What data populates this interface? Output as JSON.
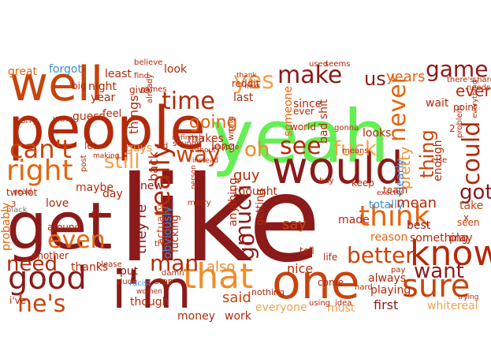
{
  "palette": {
    "dark_red": "#8b1a1a",
    "red": "#b22a0a",
    "burnt": "#c8440c",
    "orange": "#e5650f",
    "light_orange": "#f08c2c",
    "peach": "#f5a04a",
    "green": "#66ee55",
    "blue": "#3c8fd8",
    "gray": "#777777"
  },
  "words": [
    {
      "text": "like",
      "color": "dark_red"
    },
    {
      "text": "yeah",
      "color": "green"
    },
    {
      "text": "people",
      "color": "red"
    },
    {
      "text": "get",
      "color": "dark_red"
    },
    {
      "text": "would",
      "color": "dark_red"
    },
    {
      "text": "well",
      "color": "burnt"
    },
    {
      "text": "one",
      "color": "burnt"
    },
    {
      "text": "i'm",
      "color": "dark_red"
    },
    {
      "text": "good",
      "color": "dark_red"
    },
    {
      "text": "that",
      "color": "light_orange"
    },
    {
      "text": "know",
      "color": "red"
    },
    {
      "text": "think",
      "color": "orange"
    },
    {
      "text": "sure",
      "color": "burnt"
    },
    {
      "text": "right",
      "color": "orange"
    },
    {
      "text": "can't",
      "color": "burnt"
    },
    {
      "text": "time",
      "color": "red"
    },
    {
      "text": "make",
      "color": "dark_red"
    },
    {
      "text": "really",
      "color": "red"
    },
    {
      "text": "yes",
      "color": "peach"
    },
    {
      "text": "see",
      "color": "red"
    },
    {
      "text": "fuck",
      "color": "peach"
    },
    {
      "text": "never",
      "color": "orange"
    },
    {
      "text": "could",
      "color": "red"
    },
    {
      "text": "game",
      "color": "dark_red"
    },
    {
      "text": "even",
      "color": "orange"
    },
    {
      "text": "much",
      "color": "dark_red"
    },
    {
      "text": "go",
      "color": "dark_red"
    },
    {
      "text": "got",
      "color": "dark_red"
    },
    {
      "text": "want",
      "color": "dark_red"
    },
    {
      "text": "he's",
      "color": "burnt"
    },
    {
      "text": "man",
      "color": "red"
    },
    {
      "text": "better",
      "color": "burnt"
    },
    {
      "text": "thing",
      "color": "burnt"
    },
    {
      "text": "way",
      "color": "burnt"
    },
    {
      "text": "still",
      "color": "peach"
    },
    {
      "text": "need",
      "color": "red"
    },
    {
      "text": "oh",
      "color": "light_orange"
    },
    {
      "text": "us",
      "color": "dark_red"
    },
    {
      "text": "say",
      "color": "burnt"
    },
    {
      "text": "going",
      "color": "orange"
    },
    {
      "text": "every",
      "color": "red"
    },
    {
      "text": "pretty",
      "color": "light_orange"
    },
    {
      "text": "years",
      "color": "orange"
    },
    {
      "text": "said",
      "color": "burnt"
    },
    {
      "text": "guy",
      "color": "red"
    },
    {
      "text": "also",
      "color": "light_orange"
    },
    {
      "text": "nice",
      "color": "red"
    },
    {
      "text": "they're",
      "color": "dark_red"
    },
    {
      "text": "obviously",
      "color": "blue"
    },
    {
      "text": "clearly",
      "color": "blue"
    },
    {
      "text": "totally",
      "color": "blue"
    },
    {
      "text": "forgot",
      "color": "blue"
    },
    {
      "text": "mean",
      "color": "red"
    },
    {
      "text": "best",
      "color": "dark_red"
    },
    {
      "text": "made",
      "color": "red"
    },
    {
      "text": "take",
      "color": "burnt"
    },
    {
      "text": "seen",
      "color": "burnt"
    },
    {
      "text": "reason",
      "color": "orange"
    },
    {
      "text": "play",
      "color": "red"
    },
    {
      "text": "something",
      "color": "red"
    },
    {
      "text": "always",
      "color": "red"
    },
    {
      "text": "first",
      "color": "dark_red"
    },
    {
      "text": "everyone",
      "color": "peach"
    },
    {
      "text": "white",
      "color": "peach"
    },
    {
      "text": "real",
      "color": "peach"
    },
    {
      "text": "must",
      "color": "peach"
    },
    {
      "text": "money",
      "color": "red"
    },
    {
      "text": "work",
      "color": "red"
    },
    {
      "text": "though",
      "color": "red"
    },
    {
      "text": "put",
      "color": "dark_red"
    },
    {
      "text": "thanks",
      "color": "red"
    },
    {
      "text": "love",
      "color": "red"
    },
    {
      "text": "maybe",
      "color": "red"
    },
    {
      "text": "day",
      "color": "red"
    },
    {
      "text": "new",
      "color": "dark_red"
    },
    {
      "text": "back",
      "color": "red"
    },
    {
      "text": "guys",
      "color": "light_orange"
    },
    {
      "text": "actually",
      "color": "burnt"
    },
    {
      "text": "fucking",
      "color": "red"
    },
    {
      "text": "probably",
      "color": "orange"
    },
    {
      "text": "around",
      "color": "red"
    },
    {
      "text": "another",
      "color": "red"
    },
    {
      "text": "great",
      "color": "orange"
    },
    {
      "text": "night",
      "color": "red"
    },
    {
      "text": "year",
      "color": "red"
    },
    {
      "text": "least",
      "color": "red"
    },
    {
      "text": "guess",
      "color": "red"
    },
    {
      "text": "look",
      "color": "red"
    },
    {
      "text": "feel",
      "color": "red"
    },
    {
      "text": "big",
      "color": "red"
    },
    {
      "text": "give",
      "color": "red"
    },
    {
      "text": "things",
      "color": "red"
    },
    {
      "text": "makes",
      "color": "red"
    },
    {
      "text": "long",
      "color": "red"
    },
    {
      "text": "thought",
      "color": "red"
    },
    {
      "text": "someone",
      "color": "orange"
    },
    {
      "text": "anything",
      "color": "red"
    },
    {
      "text": "getting",
      "color": "red"
    },
    {
      "text": "bad shit",
      "color": "red"
    },
    {
      "text": "looks",
      "color": "red"
    },
    {
      "text": "since",
      "color": "red"
    },
    {
      "text": "ever",
      "color": "red"
    },
    {
      "text": "world",
      "color": "red"
    },
    {
      "text": "last",
      "color": "red"
    },
    {
      "text": "reddit",
      "color": "red"
    },
    {
      "text": "enough",
      "color": "red"
    },
    {
      "text": "wait",
      "color": "red"
    },
    {
      "text": "point",
      "color": "red"
    },
    {
      "text": "let",
      "color": "red"
    },
    {
      "text": "i've",
      "color": "red"
    },
    {
      "text": "tell",
      "color": "red"
    },
    {
      "text": "life",
      "color": "red"
    },
    {
      "text": "keep",
      "color": "red"
    },
    {
      "text": "come",
      "color": "red"
    },
    {
      "text": "team",
      "color": "red"
    },
    {
      "text": "two",
      "color": "red"
    },
    {
      "text": "lot",
      "color": "red"
    },
    {
      "text": "sorry",
      "color": "red"
    },
    {
      "text": "read",
      "color": "red"
    },
    {
      "text": "wow",
      "color": "red"
    },
    {
      "text": "stop",
      "color": "red"
    },
    {
      "text": "nothing",
      "color": "red"
    },
    {
      "text": "playing",
      "color": "red"
    },
    {
      "text": "idea",
      "color": "red"
    },
    {
      "text": "hard",
      "color": "red"
    },
    {
      "text": "using",
      "color": "red"
    },
    {
      "text": "used",
      "color": "red"
    },
    {
      "text": "seems",
      "color": "red"
    },
    {
      "text": "believe",
      "color": "red"
    },
    {
      "text": "find",
      "color": "red"
    },
    {
      "text": "games",
      "color": "red"
    },
    {
      "text": "already",
      "color": "red"
    },
    {
      "text": "sounds",
      "color": "red"
    },
    {
      "text": "old",
      "color": "red"
    },
    {
      "text": "definitely",
      "color": "red"
    },
    {
      "text": "without",
      "color": "red"
    },
    {
      "text": "instead",
      "color": "red"
    },
    {
      "text": "marry",
      "color": "red"
    },
    {
      "text": "please",
      "color": "red"
    },
    {
      "text": "true",
      "color": "red"
    },
    {
      "text": "dude",
      "color": "red"
    },
    {
      "text": "racist",
      "color": "blue"
    },
    {
      "text": "black",
      "color": "gray"
    },
    {
      "text": "post",
      "color": "red"
    },
    {
      "text": "making",
      "color": "red"
    },
    {
      "text": "anyone",
      "color": "red"
    },
    {
      "text": "person",
      "color": "red"
    },
    {
      "text": "gonna",
      "color": "red"
    },
    {
      "text": "means",
      "color": "red"
    },
    {
      "text": "else",
      "color": "red"
    },
    {
      "text": "buy",
      "color": "red"
    },
    {
      "text": "needs",
      "color": "red"
    },
    {
      "text": "share",
      "color": "red"
    },
    {
      "text": "there's",
      "color": "red"
    },
    {
      "text": "problem",
      "color": "red"
    },
    {
      "text": "trying",
      "color": "red"
    },
    {
      "text": "exactly",
      "color": "red"
    },
    {
      "text": "wrong",
      "color": "red"
    },
    {
      "text": "next",
      "color": "red"
    },
    {
      "text": "thank",
      "color": "red"
    },
    {
      "text": "everything",
      "color": "red"
    },
    {
      "text": "try",
      "color": "red"
    },
    {
      "text": "damn",
      "color": "red"
    },
    {
      "text": "women",
      "color": "red"
    },
    {
      "text": "pay",
      "color": "red"
    },
    {
      "text": "2",
      "color": "red"
    },
    {
      "text": "3",
      "color": "red"
    },
    {
      "text": "x",
      "color": "red"
    }
  ]
}
